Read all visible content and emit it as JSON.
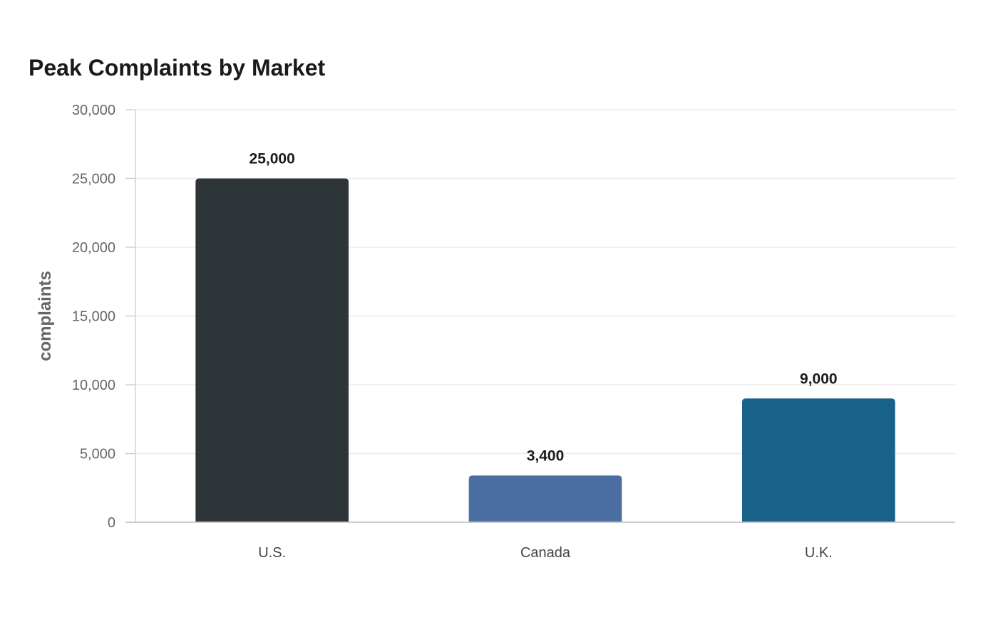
{
  "chart_data": {
    "type": "bar",
    "title": "Peak Complaints by Market",
    "xlabel": "",
    "ylabel": "complaints",
    "categories": [
      "U.S.",
      "Canada",
      "U.K."
    ],
    "values": [
      25000,
      3400,
      9000
    ],
    "data_labels": [
      "25,000",
      "3,400",
      "9,000"
    ],
    "colors": [
      "#2e3538",
      "#4b6ea3",
      "#186188"
    ],
    "ylim": [
      0,
      30000
    ],
    "yticks": [
      0,
      5000,
      10000,
      15000,
      20000,
      25000,
      30000
    ],
    "ytick_labels": [
      "0",
      "5,000",
      "10,000",
      "15,000",
      "20,000",
      "25,000",
      "30,000"
    ],
    "grid": true,
    "legend": "none"
  }
}
